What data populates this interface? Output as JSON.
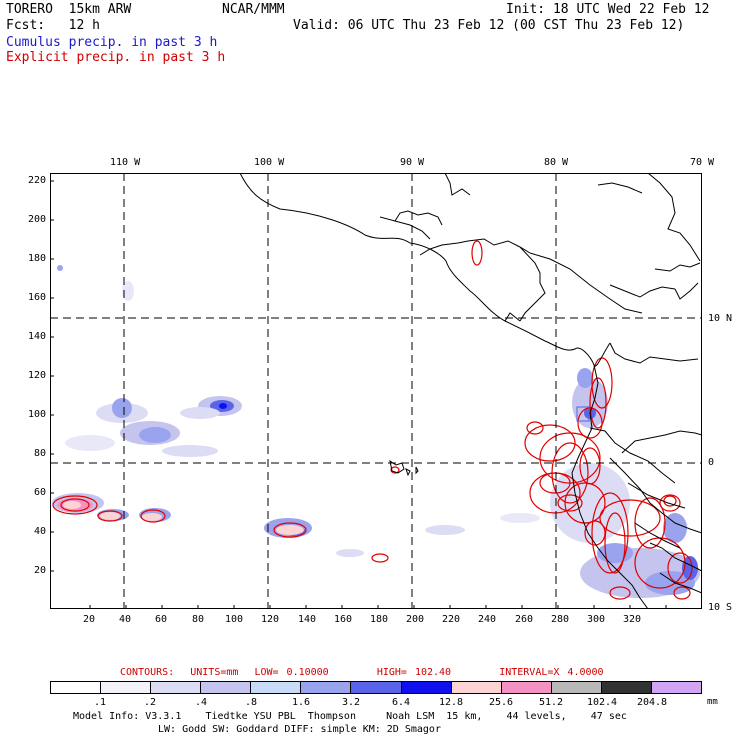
{
  "header": {
    "model": "TORERO  15km ARW",
    "org": "NCAR/MMM",
    "init": "Init: 18 UTC Wed 22 Feb 12",
    "fcst": "Fcst:   12 h",
    "valid": "Valid: 06 UTC Thu 23 Feb 12 (00 CST Thu 23 Feb 12)",
    "cumulus": "Cumulus precip. in past 3 h",
    "explicit": "Explicit precip. in past 3 h"
  },
  "map": {
    "lon_labels": [
      "110 W",
      "100 W",
      "90 W",
      "80 W",
      "70 W"
    ],
    "lat_labels": [
      "10 N",
      "0",
      "10 S"
    ],
    "x_ticks": [
      "20",
      "40",
      "60",
      "80",
      "100",
      "120",
      "140",
      "160",
      "180",
      "200",
      "220",
      "240",
      "260",
      "280",
      "300",
      "320"
    ],
    "y_ticks": [
      "220",
      "200",
      "180",
      "160",
      "140",
      "120",
      "100",
      "80",
      "60",
      "40",
      "20"
    ]
  },
  "contours": {
    "label": "CONTOURS:",
    "units": "UNITS=mm",
    "low": "LOW= 0.10000",
    "high": "HIGH= 102.40",
    "interval": "INTERVAL=X 4.0000"
  },
  "legend": {
    "unit": "mm",
    "ticks": [
      ".1",
      ".2",
      ".4",
      ".8",
      "1.6",
      "3.2",
      "6.4",
      "12.8",
      "25.6",
      "51.2",
      "102.4",
      "204.8"
    ],
    "colors": [
      "#ffffff",
      "#f2f2f8",
      "#dcdcf4",
      "#c4c4ee",
      "#c8dcf8",
      "#9aa4ee",
      "#5a64e8",
      "#1010ee",
      "#fcd4d4",
      "#f492c4",
      "#b8b8b8",
      "#323232",
      "#d2a4f4"
    ]
  },
  "footer": {
    "line1": "Model Info: V3.3.1    Tiedtke YSU PBL  Thompson     Noah LSM  15 km,    44 levels,    47 sec",
    "line2": "LW: Godd SW: Goddard DIFF: simple KM: 2D Smagor"
  }
}
